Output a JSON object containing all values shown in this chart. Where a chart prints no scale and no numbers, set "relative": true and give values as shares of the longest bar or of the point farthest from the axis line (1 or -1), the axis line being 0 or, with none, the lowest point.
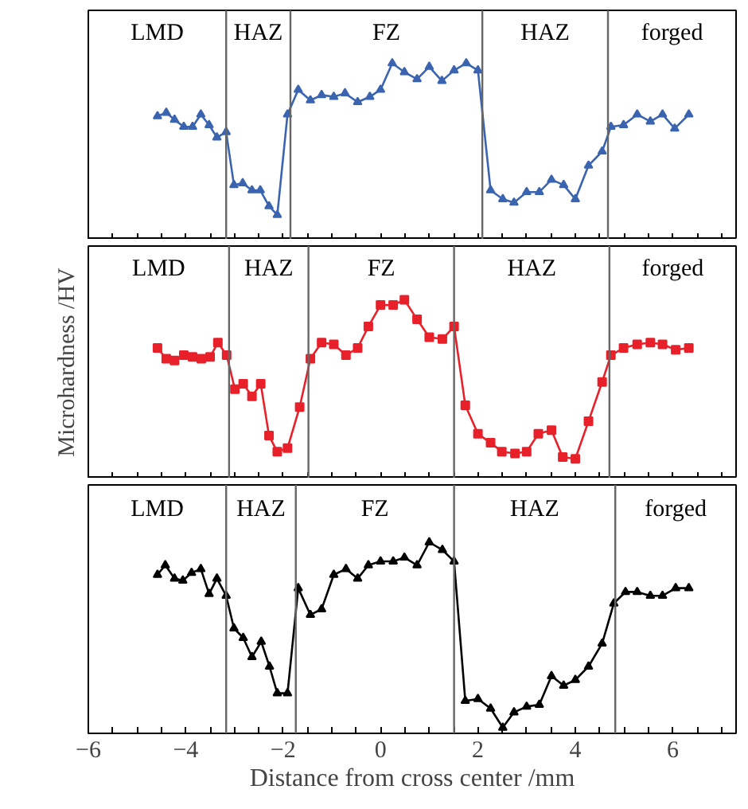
{
  "chart_data": [
    {
      "type": "line",
      "relative": true,
      "marker": "triangle",
      "tick_labels": false,
      "xlim": [
        -6,
        7.3
      ],
      "xticks": [
        -6,
        -5.5,
        -5,
        -4.5,
        -4,
        -3.5,
        -3,
        -2.5,
        -2,
        -1.5,
        -1,
        -0.5,
        0,
        0.5,
        1,
        1.5,
        2,
        2.5,
        3,
        3.5,
        4,
        4.5,
        5,
        5.5,
        6,
        6.5,
        7
      ],
      "x": [
        -4.58,
        -4.4,
        -4.23,
        -4.04,
        -3.86,
        -3.69,
        -3.52,
        -3.36,
        -3.17,
        -3.01,
        -2.83,
        -2.64,
        -2.47,
        -2.29,
        -2.12,
        -1.91,
        -1.69,
        -1.44,
        -1.21,
        -0.96,
        -0.73,
        -0.47,
        -0.22,
        0,
        0.24,
        0.49,
        0.75,
        1.0,
        1.26,
        1.51,
        1.76,
        2.0,
        2.26,
        2.51,
        2.74,
        3.0,
        3.26,
        3.51,
        3.76,
        4.0,
        4.27,
        4.55,
        4.73,
        4.99,
        5.27,
        5.54,
        5.79,
        6.04,
        6.33
      ],
      "series": [
        {
          "color": "#3b64b0",
          "values": [
            0.7,
            0.72,
            0.68,
            0.64,
            0.64,
            0.71,
            0.65,
            0.58,
            0.61,
            0.31,
            0.32,
            0.28,
            0.28,
            0.19,
            0.14,
            0.71,
            0.85,
            0.79,
            0.82,
            0.81,
            0.83,
            0.78,
            0.81,
            0.85,
            1.0,
            0.95,
            0.91,
            0.98,
            0.9,
            0.96,
            1.0,
            0.96,
            0.28,
            0.23,
            0.21,
            0.27,
            0.27,
            0.34,
            0.31,
            0.23,
            0.42,
            0.5,
            0.64,
            0.65,
            0.71,
            0.67,
            0.71,
            0.63,
            0.71
          ]
        }
      ],
      "ref_lines": [
        {
          "axis": "x",
          "value": -3.17,
          "color": "#666666"
        },
        {
          "axis": "x",
          "value": -1.85,
          "color": "#666666"
        },
        {
          "axis": "x",
          "value": 2.09,
          "color": "#666666"
        },
        {
          "axis": "x",
          "value": 4.67,
          "color": "#666666"
        }
      ],
      "annotations": [
        "LMD",
        "HAZ",
        "FZ",
        "HAZ",
        "forged"
      ]
    },
    {
      "type": "line",
      "relative": true,
      "marker": "square",
      "tick_labels": false,
      "ylabel": "Microhardness /HV",
      "xlim": [
        -6,
        7.3
      ],
      "xticks": [
        -6,
        -5.5,
        -5,
        -4.5,
        -4,
        -3.5,
        -3,
        -2.5,
        -2,
        -1.5,
        -1,
        -0.5,
        0,
        0.5,
        1,
        1.5,
        2,
        2.5,
        3,
        3.5,
        4,
        4.5,
        5,
        5.5,
        6,
        6.5,
        7
      ],
      "x": [
        -4.58,
        -4.4,
        -4.23,
        -4.04,
        -3.86,
        -3.68,
        -3.5,
        -3.34,
        -3.16,
        -2.99,
        -2.82,
        -2.64,
        -2.46,
        -2.29,
        -2.12,
        -1.91,
        -1.66,
        -1.44,
        -1.21,
        -0.96,
        -0.71,
        -0.47,
        -0.25,
        0,
        0.26,
        0.49,
        0.75,
        1.0,
        1.27,
        1.51,
        1.74,
        2.0,
        2.26,
        2.49,
        2.76,
        3.0,
        3.24,
        3.51,
        3.74,
        4.0,
        4.27,
        4.55,
        4.73,
        4.99,
        5.27,
        5.54,
        5.79,
        6.06,
        6.33
      ],
      "series": [
        {
          "color": "#e8202a",
          "values": [
            0.73,
            0.67,
            0.66,
            0.69,
            0.68,
            0.67,
            0.68,
            0.76,
            0.69,
            0.5,
            0.53,
            0.46,
            0.53,
            0.24,
            0.15,
            0.17,
            0.4,
            0.67,
            0.76,
            0.75,
            0.69,
            0.73,
            0.85,
            0.97,
            0.97,
            1.0,
            0.89,
            0.79,
            0.78,
            0.85,
            0.41,
            0.25,
            0.2,
            0.15,
            0.14,
            0.15,
            0.25,
            0.27,
            0.12,
            0.11,
            0.32,
            0.54,
            0.69,
            0.73,
            0.75,
            0.76,
            0.75,
            0.72,
            0.73
          ]
        }
      ],
      "ref_lines": [
        {
          "axis": "x",
          "value": -3.11,
          "color": "#666666"
        },
        {
          "axis": "x",
          "value": -1.48,
          "color": "#666666"
        },
        {
          "axis": "x",
          "value": 1.51,
          "color": "#666666"
        },
        {
          "axis": "x",
          "value": 4.7,
          "color": "#666666"
        }
      ],
      "annotations": [
        "LMD",
        "HAZ",
        "FZ",
        "HAZ",
        "forged"
      ]
    },
    {
      "type": "line",
      "relative": true,
      "marker": "triangle",
      "tick_labels": "x",
      "xlabel": "Distance from cross center /mm",
      "xlim": [
        -6,
        7.3
      ],
      "xticks": [
        {
          "value": -6,
          "label": "−6"
        },
        {
          "value": -5.5,
          "label": null
        },
        {
          "value": -5,
          "label": null
        },
        {
          "value": -4.5,
          "label": null
        },
        {
          "value": -4,
          "label": "−4"
        },
        {
          "value": -3.5,
          "label": null
        },
        {
          "value": -3,
          "label": null
        },
        {
          "value": -2.5,
          "label": null
        },
        {
          "value": -2,
          "label": "−2"
        },
        {
          "value": -1.5,
          "label": null
        },
        {
          "value": -1,
          "label": null
        },
        {
          "value": -0.5,
          "label": null
        },
        0,
        {
          "value": 0.5,
          "label": null
        },
        {
          "value": 1,
          "label": null
        },
        {
          "value": 1.5,
          "label": null
        },
        2,
        {
          "value": 2.5,
          "label": null
        },
        {
          "value": 3,
          "label": null
        },
        {
          "value": 3.5,
          "label": null
        },
        4,
        {
          "value": 4.5,
          "label": null
        },
        {
          "value": 5,
          "label": null
        },
        {
          "value": 5.5,
          "label": null
        },
        6,
        {
          "value": 6.5,
          "label": null
        },
        {
          "value": 7,
          "label": null
        }
      ],
      "x": [
        -4.58,
        -4.42,
        -4.23,
        -4.06,
        -3.88,
        -3.69,
        -3.52,
        -3.36,
        -3.17,
        -3.01,
        -2.82,
        -2.64,
        -2.45,
        -2.28,
        -2.12,
        -1.91,
        -1.69,
        -1.44,
        -1.21,
        -0.96,
        -0.71,
        -0.47,
        -0.25,
        0,
        0.26,
        0.49,
        0.75,
        1.0,
        1.27,
        1.51,
        1.74,
        2.0,
        2.26,
        2.51,
        2.74,
        3.0,
        3.26,
        3.51,
        3.76,
        4.0,
        4.27,
        4.55,
        4.79,
        5.03,
        5.27,
        5.54,
        5.79,
        6.06,
        6.33
      ],
      "series": [
        {
          "color": "#000000",
          "values": [
            0.83,
            0.88,
            0.81,
            0.8,
            0.84,
            0.86,
            0.73,
            0.81,
            0.72,
            0.55,
            0.5,
            0.4,
            0.48,
            0.35,
            0.21,
            0.21,
            0.76,
            0.62,
            0.65,
            0.83,
            0.86,
            0.81,
            0.88,
            0.9,
            0.9,
            0.92,
            0.88,
            1.0,
            0.96,
            0.9,
            0.17,
            0.18,
            0.13,
            0.03,
            0.11,
            0.14,
            0.15,
            0.3,
            0.25,
            0.28,
            0.35,
            0.47,
            0.68,
            0.74,
            0.74,
            0.72,
            0.72,
            0.76,
            0.76
          ]
        }
      ],
      "ref_lines": [
        {
          "axis": "x",
          "value": -3.17,
          "color": "#666666"
        },
        {
          "axis": "x",
          "value": -1.74,
          "color": "#666666"
        },
        {
          "axis": "x",
          "value": 1.51,
          "color": "#666666"
        },
        {
          "axis": "x",
          "value": 4.82,
          "color": "#666666"
        }
      ],
      "annotations": [
        "LMD",
        "HAZ",
        "FZ",
        "HAZ",
        "forged"
      ]
    }
  ]
}
